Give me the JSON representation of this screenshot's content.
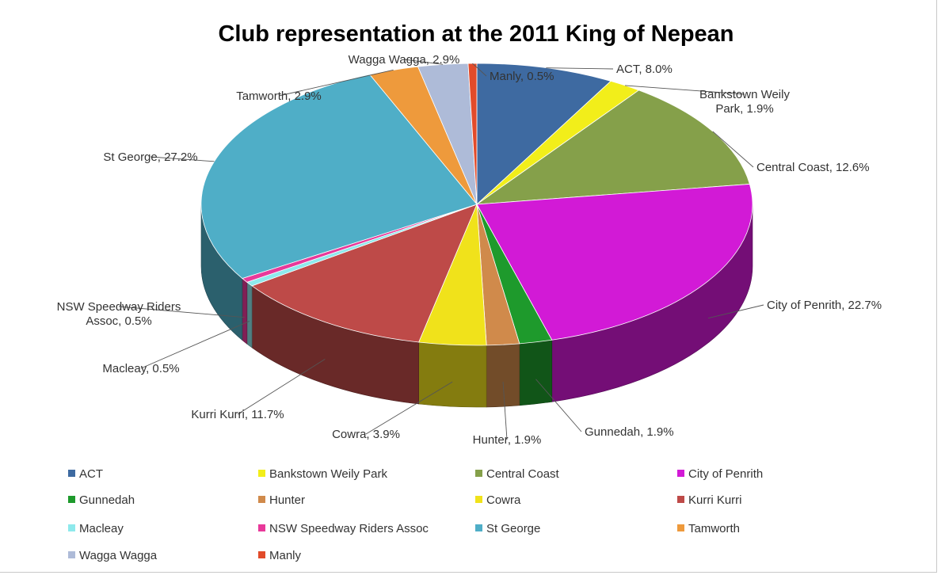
{
  "chart_data": {
    "type": "pie",
    "style": "3d",
    "title": "Club representation at the 2011 King of Nepean",
    "legend_position": "bottom",
    "slices": [
      {
        "name": "ACT",
        "value": 8.0,
        "label": "ACT, 8.0%",
        "color": "#3E6AA1"
      },
      {
        "name": "Bankstown Weily Park",
        "value": 1.9,
        "label": "Bankstown Weily Park, 1.9%",
        "color": "#F2EE1A"
      },
      {
        "name": "Central Coast",
        "value": 12.6,
        "label": "Central Coast, 12.6%",
        "color": "#85A04A"
      },
      {
        "name": "City of Penrith",
        "value": 22.7,
        "label": "City of Penrith, 22.7%",
        "color": "#D21AD6"
      },
      {
        "name": "Gunnedah",
        "value": 1.9,
        "label": "Gunnedah, 1.9%",
        "color": "#1E9A2C"
      },
      {
        "name": "Hunter",
        "value": 1.9,
        "label": "Hunter, 1.9%",
        "color": "#D08A4B"
      },
      {
        "name": "Cowra",
        "value": 3.9,
        "label": "Cowra, 3.9%",
        "color": "#F0E21B"
      },
      {
        "name": "Kurri Kurri",
        "value": 11.7,
        "label": "Kurri Kurri, 11.7%",
        "color": "#BE4A48"
      },
      {
        "name": "Macleay",
        "value": 0.5,
        "label": "Macleay, 0.5%",
        "color": "#8EE9EC"
      },
      {
        "name": "NSW Speedway Riders Assoc",
        "value": 0.5,
        "label": "NSW Speedway Riders Assoc, 0.5%",
        "color": "#E8399A"
      },
      {
        "name": "St George",
        "value": 27.2,
        "label": "St George, 27.2%",
        "color": "#4FAEC7"
      },
      {
        "name": "Tamworth",
        "value": 2.9,
        "label": "Tamworth, 2.9%",
        "color": "#EE9A3C"
      },
      {
        "name": "Wagga Wagga",
        "value": 2.9,
        "label": "Wagga Wagga, 2.9%",
        "color": "#AEBBD8"
      },
      {
        "name": "Manly",
        "value": 0.5,
        "label": "Manly, 0.5%",
        "color": "#E24B2A"
      }
    ]
  }
}
